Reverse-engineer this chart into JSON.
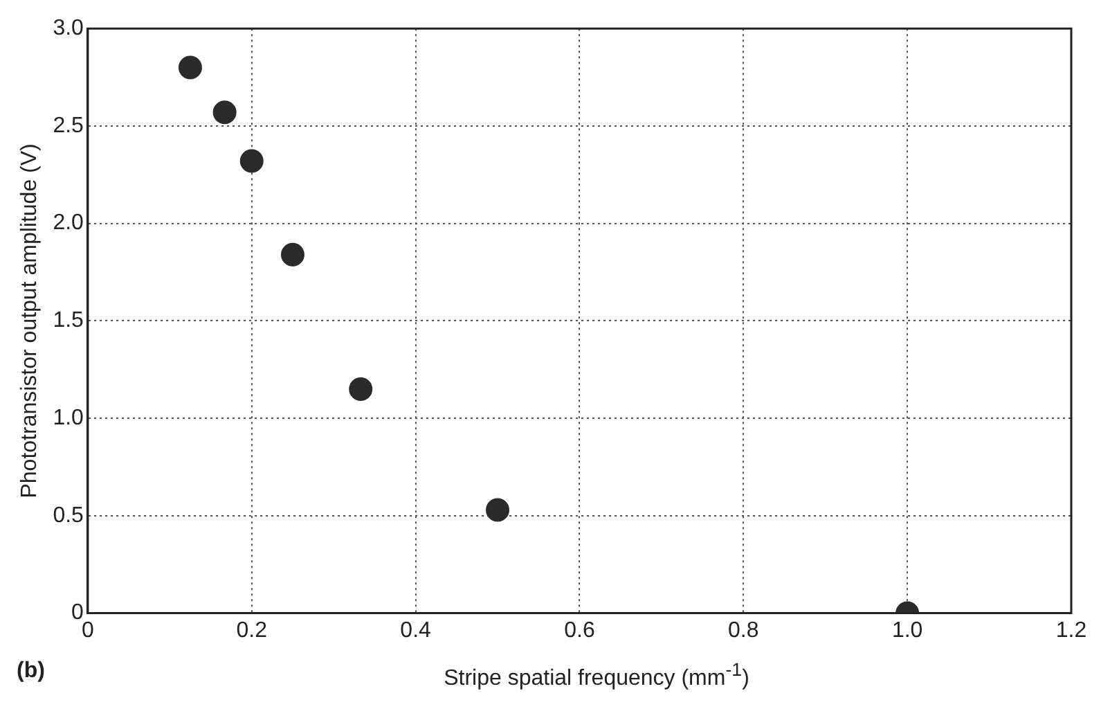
{
  "chart_data": {
    "type": "scatter",
    "xlabel": "Stripe spatial frequency (mm$^{-1}$)",
    "ylabel": "Phototransistor output amplitude (V)",
    "annotations": [
      "(b)"
    ],
    "x": [
      0.125,
      0.167,
      0.2,
      0.25,
      0.333,
      0.5,
      1.0
    ],
    "series": [
      {
        "color": "#2b2b2b",
        "values": [
          2.8,
          2.57,
          2.32,
          1.84,
          1.15,
          0.53,
          0
        ]
      }
    ],
    "xlim": [
      0,
      1.2
    ],
    "xticks": [
      0,
      0.2,
      0.4,
      0.6,
      0.8,
      {
        "value": 1,
        "label": "1.0"
      },
      1.2
    ],
    "ylim": [
      0,
      3
    ],
    "yticks": [
      0,
      0.5,
      {
        "value": 1,
        "label": "1.0"
      },
      1.5,
      {
        "value": 2,
        "label": "2.0"
      },
      2.5,
      {
        "value": 3,
        "label": "3.0"
      }
    ],
    "grid": true,
    "legend": false,
    "marker": "circle"
  }
}
